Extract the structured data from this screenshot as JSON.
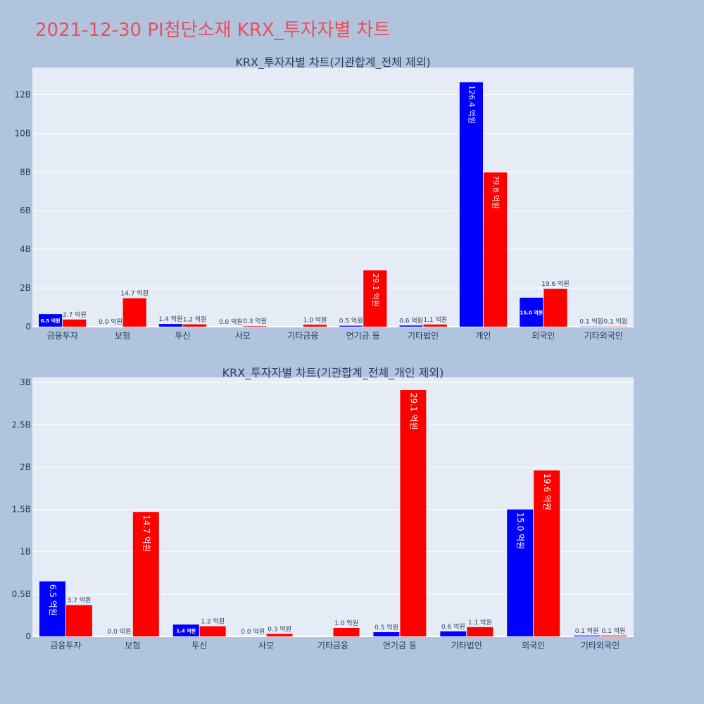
{
  "page_title": "2021-12-30 PI첨단소재 KRX_투자자별 차트",
  "colors": {
    "buy": "#0000ff",
    "sell": "#ff0000",
    "plot_bg": "#e5ecf6",
    "page_bg": "#b0c4de"
  },
  "chart_data": [
    {
      "type": "bar",
      "title": "KRX_투자자별 차트(기관합계_전체 제외)",
      "categories": [
        "금융투자",
        "보험",
        "투신",
        "사모",
        "기타금융",
        "연기금 등",
        "기타법인",
        "개인",
        "외국인",
        "기타외국인"
      ],
      "series": [
        {
          "values": [
            650000000,
            0,
            140000000,
            0,
            0,
            50000000,
            60000000,
            12640000000,
            1500000000,
            10000000
          ],
          "labels": [
            "6.5 억원",
            "0.0 억원",
            "1.4 억원",
            "0.0 억원",
            "",
            "0.5 억원",
            "0.6 억원",
            "126.4 억원",
            "15.0 억원",
            "0.1 억원"
          ]
        },
        {
          "values": [
            370000000,
            1470000000,
            120000000,
            30000000,
            100000000,
            2910000000,
            110000000,
            7980000000,
            1960000000,
            10000000
          ],
          "labels": [
            "3.7 억원",
            "14.7 억원",
            "1.2 억원",
            "0.3 억원",
            "1.0 억원",
            "29.1 억원",
            "1.1 억원",
            "79.8 억원",
            "19.6 억원",
            "0.1 억원"
          ]
        }
      ],
      "ylim": [
        0,
        13400000000
      ],
      "yticks": [
        0,
        2000000000,
        4000000000,
        6000000000,
        8000000000,
        10000000000,
        12000000000
      ],
      "ytick_labels": [
        "0",
        "2B",
        "4B",
        "6B",
        "8B",
        "10B",
        "12B"
      ],
      "grid": true
    },
    {
      "type": "bar",
      "title": "KRX_투자자별 차트(기관합계_전체_개인 제외)",
      "categories": [
        "금융투자",
        "보험",
        "투신",
        "사모",
        "기타금융",
        "연기금 등",
        "기타법인",
        "외국인",
        "기타외국인"
      ],
      "series": [
        {
          "values": [
            650000000,
            0,
            140000000,
            0,
            0,
            50000000,
            60000000,
            1500000000,
            10000000
          ],
          "labels": [
            "6.5 억원",
            "0.0 억원",
            "1.4 억원",
            "0.0 억원",
            "",
            "0.5 억원",
            "0.6 억원",
            "15.0 억원",
            "0.1 억원"
          ]
        },
        {
          "values": [
            370000000,
            1470000000,
            120000000,
            30000000,
            100000000,
            2910000000,
            110000000,
            1960000000,
            10000000
          ],
          "labels": [
            "3.7 억원",
            "14.7 억원",
            "1.2 억원",
            "0.3 억원",
            "1.0 억원",
            "29.1 억원",
            "1.1 억원",
            "19.6 억원",
            "0.1 억원"
          ]
        }
      ],
      "ylim": [
        0,
        3060000000
      ],
      "yticks": [
        0,
        500000000,
        1000000000,
        1500000000,
        2000000000,
        2500000000,
        3000000000
      ],
      "ytick_labels": [
        "0",
        "0.5B",
        "1B",
        "1.5B",
        "2B",
        "2.5B",
        "3B"
      ],
      "grid": true
    }
  ]
}
